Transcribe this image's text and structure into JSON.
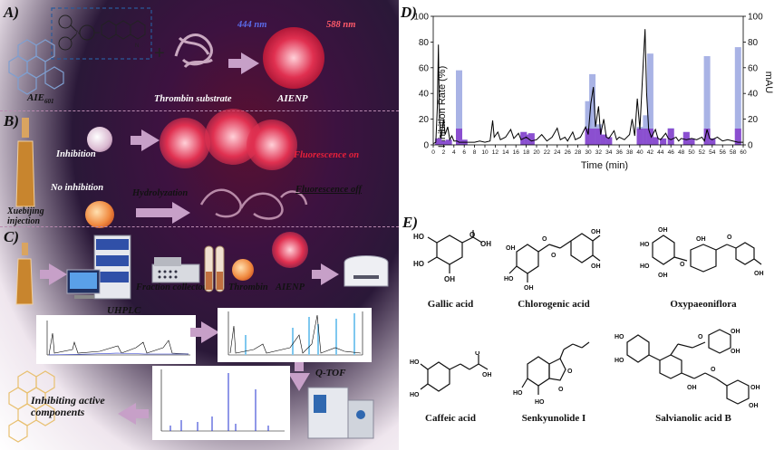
{
  "panelA": {
    "label": "A)",
    "aie_label": "AIE",
    "aie_sub": "601",
    "plus": "+",
    "thrombin_substrate": "Thrombin substrate",
    "aienp": "AIENP",
    "ex_wavelength": "444 nm",
    "em_wavelength": "588 nm"
  },
  "panelB": {
    "label": "B)",
    "inhibition": "Inhibition",
    "no_inhibition": "No inhibition",
    "hydrolyzation": "Hydrolyzation",
    "fluorescence_on": "Fluorescence on",
    "fluorescence_off": "Fluorescence off",
    "xuebijing_line1": "Xuebijing",
    "xuebijing_line2": "injection",
    "thrombin_small": "Thrombin"
  },
  "panelC": {
    "label": "C)",
    "uhplc": "UHPLC",
    "fraction_collector": "Fraction collector",
    "thrombin": "Thrombin",
    "aienp": "AIENP",
    "qtof": "Q-TOF",
    "inhibiting_line1": "Inhibiting active",
    "inhibiting_line2": "components"
  },
  "panelD": {
    "label": "D)",
    "ylabel_left": "Inhibition Rate (%)",
    "ylabel_right": "mAU",
    "xlabel": "Time (min)"
  },
  "chart_data": {
    "type": "bar",
    "title": "",
    "xlabel": "Time (min)",
    "ylabel": "Inhibition Rate (%)",
    "ylabel_right": "mAU",
    "xlim": [
      0,
      60
    ],
    "ylim": [
      0,
      100
    ],
    "ylim_right": [
      0,
      100
    ],
    "y_ticks": [
      0,
      20,
      40,
      60,
      80,
      100
    ],
    "y_ticks_right": [
      0,
      20,
      40,
      60,
      80,
      100
    ],
    "x_ticks": [
      0,
      2,
      4,
      6,
      8,
      10,
      12,
      14,
      16,
      18,
      20,
      22,
      24,
      26,
      28,
      30,
      32,
      34,
      36,
      38,
      40,
      42,
      44,
      46,
      48,
      50,
      52,
      54,
      56,
      58,
      60
    ],
    "bar_colors": [
      "#9aa6e0",
      "#8b4fd0"
    ],
    "bars": [
      {
        "x": 1.0,
        "value": 5
      },
      {
        "x": 2.0,
        "value": 3
      },
      {
        "x": 3.0,
        "value": 4
      },
      {
        "x": 5.0,
        "value": 58
      },
      {
        "x": 6.0,
        "value": 4
      },
      {
        "x": 17.5,
        "value": 10
      },
      {
        "x": 18.2,
        "value": 8
      },
      {
        "x": 19.0,
        "value": 9
      },
      {
        "x": 30.0,
        "value": 34
      },
      {
        "x": 30.8,
        "value": 55
      },
      {
        "x": 32.0,
        "value": 16
      },
      {
        "x": 33.0,
        "value": 8
      },
      {
        "x": 34.0,
        "value": 6
      },
      {
        "x": 40.0,
        "value": 14
      },
      {
        "x": 41.2,
        "value": 23
      },
      {
        "x": 42.0,
        "value": 71
      },
      {
        "x": 43.0,
        "value": 6
      },
      {
        "x": 44.5,
        "value": 5
      },
      {
        "x": 46.0,
        "value": 13
      },
      {
        "x": 49.0,
        "value": 10
      },
      {
        "x": 50.0,
        "value": 5
      },
      {
        "x": 53.0,
        "value": 69
      },
      {
        "x": 54.0,
        "value": 5
      },
      {
        "x": 59.0,
        "value": 76
      }
    ],
    "chromatogram": [
      [
        0,
        1
      ],
      [
        0.5,
        2
      ],
      [
        0.8,
        30
      ],
      [
        1.0,
        78
      ],
      [
        1.2,
        20
      ],
      [
        1.5,
        5
      ],
      [
        2.0,
        20
      ],
      [
        2.3,
        8
      ],
      [
        2.8,
        14
      ],
      [
        3.2,
        4
      ],
      [
        3.6,
        7
      ],
      [
        4.0,
        3
      ],
      [
        4.6,
        3
      ],
      [
        5.0,
        2
      ],
      [
        6,
        2
      ],
      [
        7,
        2
      ],
      [
        8,
        2
      ],
      [
        9,
        3
      ],
      [
        10,
        2
      ],
      [
        11,
        3
      ],
      [
        11.5,
        19
      ],
      [
        11.8,
        6
      ],
      [
        12.5,
        10
      ],
      [
        13,
        4
      ],
      [
        14,
        6
      ],
      [
        15,
        12
      ],
      [
        15.6,
        5
      ],
      [
        16.5,
        9
      ],
      [
        17,
        4
      ],
      [
        18,
        6
      ],
      [
        19,
        3
      ],
      [
        20,
        4
      ],
      [
        21,
        8
      ],
      [
        22,
        3
      ],
      [
        23,
        6
      ],
      [
        24,
        13
      ],
      [
        24.6,
        4
      ],
      [
        25.5,
        6
      ],
      [
        26,
        3
      ],
      [
        27,
        10
      ],
      [
        27.5,
        4
      ],
      [
        28.5,
        6
      ],
      [
        29.5,
        14
      ],
      [
        30,
        8
      ],
      [
        30.5,
        32
      ],
      [
        31,
        45
      ],
      [
        31.4,
        14
      ],
      [
        32,
        30
      ],
      [
        32.4,
        8
      ],
      [
        33,
        20
      ],
      [
        33.5,
        6
      ],
      [
        34,
        5
      ],
      [
        35,
        11
      ],
      [
        35.5,
        4
      ],
      [
        36,
        6
      ],
      [
        37,
        4
      ],
      [
        38,
        8
      ],
      [
        38.5,
        20
      ],
      [
        39,
        7
      ],
      [
        39.5,
        36
      ],
      [
        40,
        12
      ],
      [
        40.5,
        52
      ],
      [
        41,
        90
      ],
      [
        41.3,
        40
      ],
      [
        41.7,
        12
      ],
      [
        42.2,
        6
      ],
      [
        43,
        12
      ],
      [
        43.5,
        5
      ],
      [
        44,
        4
      ],
      [
        45,
        9
      ],
      [
        45.5,
        5
      ],
      [
        46,
        4
      ],
      [
        47,
        6
      ],
      [
        47.5,
        3
      ],
      [
        48,
        5
      ],
      [
        49,
        4
      ],
      [
        50,
        5
      ],
      [
        51,
        4
      ],
      [
        52,
        6
      ],
      [
        52.5,
        3
      ],
      [
        53,
        12
      ],
      [
        53.5,
        5
      ],
      [
        54,
        4
      ],
      [
        55,
        6
      ],
      [
        56,
        3
      ],
      [
        57,
        4
      ],
      [
        58,
        3
      ],
      [
        59,
        2
      ],
      [
        60,
        2
      ]
    ]
  },
  "panelE": {
    "label": "E)",
    "compounds": [
      "Gallic acid",
      "Chlorogenic acid",
      "Oxypaeoniflora",
      "Caffeic acid",
      "Senkyunolide I",
      "Salvianolic acid B"
    ]
  }
}
